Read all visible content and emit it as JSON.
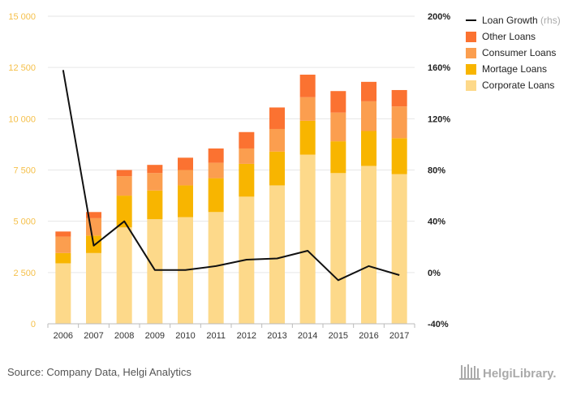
{
  "colors": {
    "corporate": "#fdd98a",
    "mortgage": "#f8b500",
    "consumer": "#fb9e4f",
    "other": "#fb7231",
    "line": "#111111",
    "left_tick": "#f5c04a",
    "grid": "#e6e6e6"
  },
  "chart_data": {
    "type": "bar",
    "stacked": true,
    "categories": [
      "2006",
      "2007",
      "2008",
      "2009",
      "2010",
      "2011",
      "2012",
      "2013",
      "2014",
      "2015",
      "2016",
      "2017"
    ],
    "series": [
      {
        "name": "Corporate Loans",
        "key": "corporate",
        "values": [
          2950,
          3450,
          4700,
          5100,
          5200,
          5450,
          6200,
          6750,
          8250,
          7350,
          7700,
          7300
        ]
      },
      {
        "name": "Mortage Loans",
        "key": "mortgage",
        "values": [
          500,
          850,
          1550,
          1400,
          1550,
          1650,
          1600,
          1650,
          1650,
          1550,
          1700,
          1750
        ]
      },
      {
        "name": "Consumer Loans",
        "key": "consumer",
        "values": [
          800,
          850,
          950,
          850,
          750,
          750,
          750,
          1100,
          1150,
          1400,
          1450,
          1550
        ]
      },
      {
        "name": "Other Loans",
        "key": "other",
        "values": [
          250,
          300,
          300,
          400,
          600,
          700,
          800,
          1050,
          1100,
          1050,
          950,
          800
        ]
      }
    ],
    "line_series": {
      "name": "Loan Growth",
      "axis_note": "(rhs)",
      "values": [
        null,
        158,
        21,
        40,
        2,
        2,
        5,
        10,
        11,
        17,
        -6,
        5,
        -2
      ],
      "x_index": [
        0,
        0,
        1,
        2,
        3,
        4,
        5,
        6,
        7,
        8,
        9,
        10,
        11
      ]
    },
    "y_left": {
      "min": 0,
      "max": 15000,
      "ticks": [
        "0",
        "2 500",
        "5 000",
        "7 500",
        "10 000",
        "12 500",
        "15 000"
      ],
      "values": [
        0,
        2500,
        5000,
        7500,
        10000,
        12500,
        15000
      ]
    },
    "y_right": {
      "min": -40,
      "max": 200,
      "ticks": [
        "-40%",
        "0%",
        "40%",
        "80%",
        "120%",
        "160%",
        "200%"
      ],
      "values": [
        -40,
        0,
        40,
        80,
        120,
        160,
        200
      ]
    },
    "legend_position": "top-right",
    "grid": true
  },
  "footer": {
    "source": "Source: Company Data, Helgi Analytics",
    "brand": "HelgiLibrary."
  }
}
